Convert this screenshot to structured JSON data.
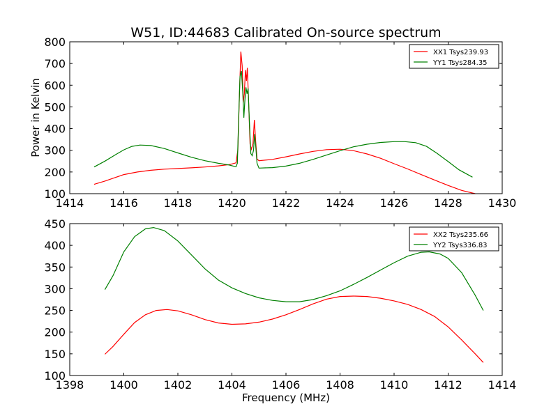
{
  "chart_data": [
    {
      "type": "line",
      "title": "W51, ID:44683 Calibrated On-source spectrum",
      "xlabel": "",
      "ylabel": "Power in Kelvin",
      "xlim": [
        1414,
        1430
      ],
      "ylim": [
        100,
        800
      ],
      "xticks": [
        1414,
        1416,
        1418,
        1420,
        1422,
        1424,
        1426,
        1428,
        1430
      ],
      "yticks": [
        100,
        200,
        300,
        400,
        500,
        600,
        700,
        800
      ],
      "legend": "top-right",
      "grid": false,
      "series": [
        {
          "name": "XX1 Tsys239.93",
          "color": "#ff0000",
          "points": [
            [
              1414.9,
              143
            ],
            [
              1415.3,
              158
            ],
            [
              1415.7,
              175
            ],
            [
              1416.0,
              188
            ],
            [
              1416.5,
              200
            ],
            [
              1417.0,
              208
            ],
            [
              1417.5,
              213
            ],
            [
              1418.0,
              216
            ],
            [
              1418.5,
              219
            ],
            [
              1419.0,
              223
            ],
            [
              1419.5,
              228
            ],
            [
              1419.9,
              234
            ],
            [
              1420.15,
              242
            ],
            [
              1420.22,
              300
            ],
            [
              1420.28,
              560
            ],
            [
              1420.33,
              755
            ],
            [
              1420.38,
              690
            ],
            [
              1420.42,
              520
            ],
            [
              1420.46,
              560
            ],
            [
              1420.5,
              670
            ],
            [
              1420.54,
              620
            ],
            [
              1420.57,
              680
            ],
            [
              1420.62,
              520
            ],
            [
              1420.67,
              330
            ],
            [
              1420.72,
              305
            ],
            [
              1420.78,
              330
            ],
            [
              1420.83,
              440
            ],
            [
              1420.88,
              340
            ],
            [
              1420.93,
              260
            ],
            [
              1421.0,
              252
            ],
            [
              1421.5,
              258
            ],
            [
              1422.0,
              270
            ],
            [
              1422.5,
              283
            ],
            [
              1423.0,
              295
            ],
            [
              1423.5,
              303
            ],
            [
              1424.0,
              305
            ],
            [
              1424.5,
              298
            ],
            [
              1425.0,
              283
            ],
            [
              1425.5,
              263
            ],
            [
              1426.0,
              238
            ],
            [
              1426.5,
              214
            ],
            [
              1427.0,
              188
            ],
            [
              1427.5,
              163
            ],
            [
              1428.0,
              138
            ],
            [
              1428.5,
              115
            ],
            [
              1429.0,
              100
            ]
          ]
        },
        {
          "name": "YY1 Tsys284.35",
          "color": "#008000",
          "points": [
            [
              1414.9,
              223
            ],
            [
              1415.3,
              250
            ],
            [
              1415.7,
              280
            ],
            [
              1416.0,
              302
            ],
            [
              1416.3,
              318
            ],
            [
              1416.6,
              324
            ],
            [
              1417.0,
              322
            ],
            [
              1417.5,
              308
            ],
            [
              1418.0,
              288
            ],
            [
              1418.5,
              268
            ],
            [
              1419.0,
              252
            ],
            [
              1419.5,
              240
            ],
            [
              1419.9,
              232
            ],
            [
              1420.15,
              224
            ],
            [
              1420.2,
              240
            ],
            [
              1420.25,
              450
            ],
            [
              1420.3,
              640
            ],
            [
              1420.35,
              665
            ],
            [
              1420.4,
              570
            ],
            [
              1420.44,
              450
            ],
            [
              1420.48,
              530
            ],
            [
              1420.52,
              590
            ],
            [
              1420.56,
              560
            ],
            [
              1420.6,
              585
            ],
            [
              1420.65,
              420
            ],
            [
              1420.7,
              285
            ],
            [
              1420.75,
              275
            ],
            [
              1420.8,
              300
            ],
            [
              1420.84,
              375
            ],
            [
              1420.88,
              320
            ],
            [
              1420.93,
              240
            ],
            [
              1421.0,
              218
            ],
            [
              1421.5,
              220
            ],
            [
              1422.0,
              227
            ],
            [
              1422.5,
              240
            ],
            [
              1423.0,
              258
            ],
            [
              1423.5,
              278
            ],
            [
              1424.0,
              298
            ],
            [
              1424.5,
              316
            ],
            [
              1425.0,
              328
            ],
            [
              1425.5,
              336
            ],
            [
              1426.0,
              340
            ],
            [
              1426.4,
              340
            ],
            [
              1426.8,
              335
            ],
            [
              1427.2,
              318
            ],
            [
              1427.6,
              285
            ],
            [
              1428.0,
              248
            ],
            [
              1428.4,
              210
            ],
            [
              1428.9,
              176
            ]
          ]
        }
      ]
    },
    {
      "type": "line",
      "title": "",
      "xlabel": "Frequency (MHz)",
      "ylabel": "",
      "xlim": [
        1398,
        1414
      ],
      "ylim": [
        100,
        450
      ],
      "xticks": [
        1398,
        1400,
        1402,
        1404,
        1406,
        1408,
        1410,
        1412,
        1414
      ],
      "yticks": [
        100,
        150,
        200,
        250,
        300,
        350,
        400,
        450
      ],
      "legend": "top-right",
      "grid": false,
      "series": [
        {
          "name": "XX2 Tsys235.66",
          "color": "#ff0000",
          "points": [
            [
              1399.3,
              149
            ],
            [
              1399.6,
              167
            ],
            [
              1400.0,
              195
            ],
            [
              1400.4,
              222
            ],
            [
              1400.8,
              240
            ],
            [
              1401.2,
              250
            ],
            [
              1401.6,
              252
            ],
            [
              1402.0,
              249
            ],
            [
              1402.5,
              240
            ],
            [
              1403.0,
              229
            ],
            [
              1403.5,
              221
            ],
            [
              1404.0,
              218
            ],
            [
              1404.5,
              219
            ],
            [
              1405.0,
              223
            ],
            [
              1405.5,
              230
            ],
            [
              1406.0,
              240
            ],
            [
              1406.5,
              252
            ],
            [
              1407.0,
              265
            ],
            [
              1407.5,
              276
            ],
            [
              1408.0,
              282
            ],
            [
              1408.5,
              283
            ],
            [
              1409.0,
              282
            ],
            [
              1409.5,
              278
            ],
            [
              1410.0,
              272
            ],
            [
              1410.5,
              264
            ],
            [
              1411.0,
              252
            ],
            [
              1411.5,
              236
            ],
            [
              1412.0,
              212
            ],
            [
              1412.5,
              182
            ],
            [
              1413.0,
              150
            ],
            [
              1413.3,
              130
            ]
          ]
        },
        {
          "name": "YY2 Tsys336.83",
          "color": "#008000",
          "points": [
            [
              1399.3,
              298
            ],
            [
              1399.6,
              330
            ],
            [
              1400.0,
              385
            ],
            [
              1400.4,
              420
            ],
            [
              1400.8,
              438
            ],
            [
              1401.1,
              441
            ],
            [
              1401.5,
              434
            ],
            [
              1402.0,
              410
            ],
            [
              1402.5,
              378
            ],
            [
              1403.0,
              346
            ],
            [
              1403.5,
              320
            ],
            [
              1404.0,
              302
            ],
            [
              1404.5,
              289
            ],
            [
              1405.0,
              279
            ],
            [
              1405.5,
              273
            ],
            [
              1406.0,
              270
            ],
            [
              1406.5,
              270
            ],
            [
              1407.0,
              275
            ],
            [
              1407.5,
              284
            ],
            [
              1408.0,
              295
            ],
            [
              1408.5,
              310
            ],
            [
              1409.0,
              326
            ],
            [
              1409.5,
              343
            ],
            [
              1410.0,
              360
            ],
            [
              1410.5,
              375
            ],
            [
              1411.0,
              384
            ],
            [
              1411.3,
              385
            ],
            [
              1411.7,
              380
            ],
            [
              1412.0,
              370
            ],
            [
              1412.5,
              337
            ],
            [
              1413.0,
              285
            ],
            [
              1413.3,
              250
            ]
          ]
        }
      ]
    }
  ]
}
